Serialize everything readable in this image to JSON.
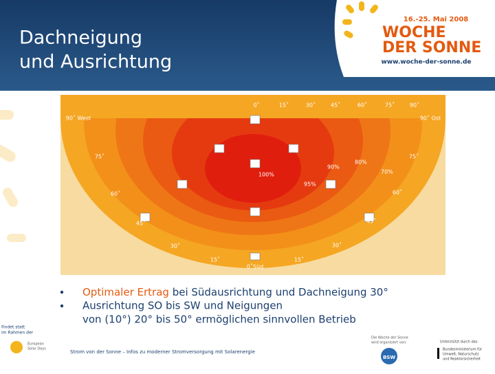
{
  "header": {
    "title_lines": [
      "Dachneigung",
      "und Ausrichtung"
    ]
  },
  "logo": {
    "date": "16.-25. Mai 2008",
    "name_lines": [
      "WOCHE",
      "DER SONNE"
    ],
    "url": "www.woche-der-sonne.de"
  },
  "diagram": {
    "top_angles": [
      "0˚",
      "15˚",
      "30˚",
      "45˚",
      "60˚",
      "75˚",
      "90˚"
    ],
    "west": "90˚ West",
    "east": "90˚ Ost",
    "left_angles": [
      "75˚",
      "60˚",
      "45˚",
      "30˚",
      "15˚"
    ],
    "right_angles": [
      "75˚",
      "60˚",
      "45˚",
      "30˚",
      "15˚"
    ],
    "south": "0˚Süd",
    "yields": [
      "100%",
      "95%",
      "90%",
      "80%",
      "70%"
    ]
  },
  "bullets": [
    {
      "highlight": "Optimaler Ertrag",
      "text": " bei Südausrichtung und Dachneigung 30°"
    },
    {
      "lines": [
        "Ausrichtung SO bis SW und Neigungen",
        "von (10°) 20° bis 50° ermöglichen sinnvollen Betrieb"
      ]
    }
  ],
  "footer": {
    "context_lines": [
      "Findet statt",
      "im Rahmen der"
    ],
    "esd_lines": [
      "European",
      "Solar Days"
    ],
    "tagline": "Strom von der Sonne – Infos zu moderner Stromversorgung mit Solarenergie",
    "organizer_lines": [
      "Die Woche der Sonne",
      "wird organisiert von:"
    ],
    "organizer": "BSW",
    "support": "Unterstützt durch das",
    "ministry_lines": [
      "Bundesministerium für",
      "Umwelt, Naturschutz",
      "und Reaktorsicherheit"
    ]
  }
}
